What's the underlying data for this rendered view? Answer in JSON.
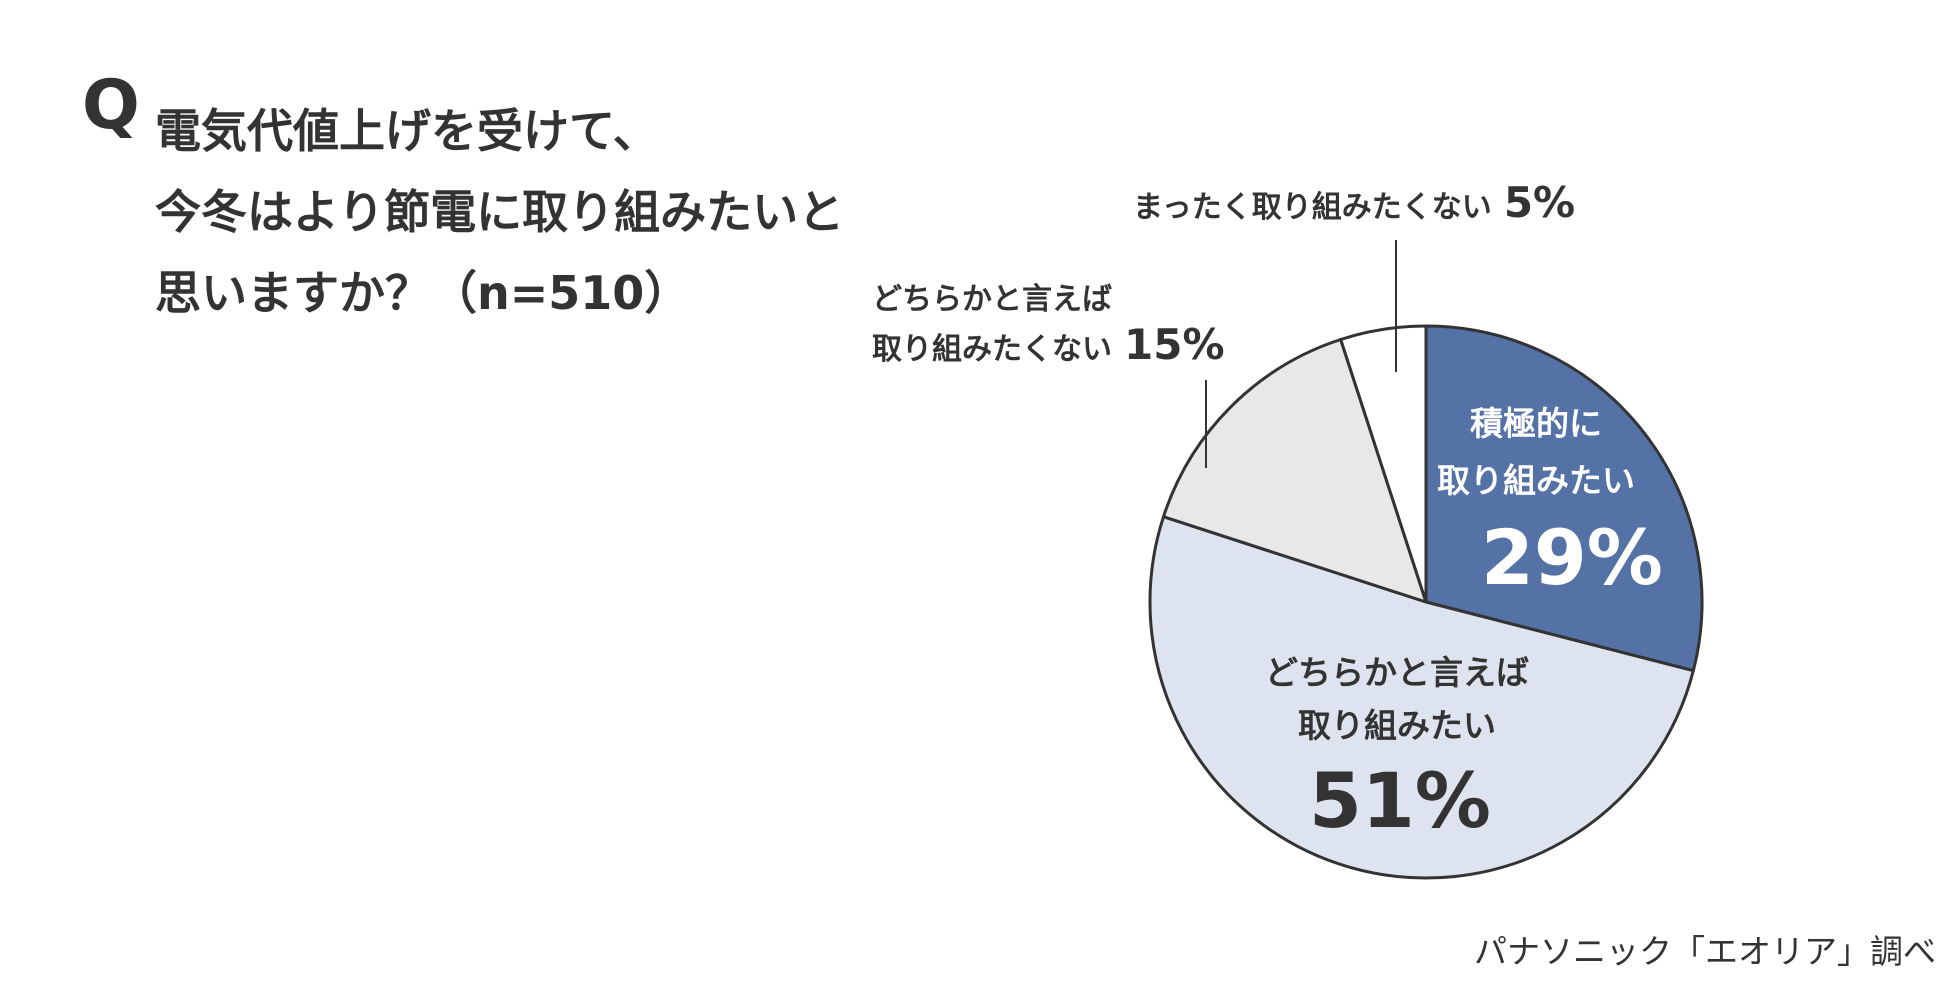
{
  "question": {
    "mark": "Q",
    "lines": [
      "電気代値上げを受けて、",
      "今冬はより節電に取り組みたいと",
      "思いますか？（n=510）"
    ]
  },
  "source": "パナソニック「エオリア」調べ",
  "chart_data": {
    "type": "pie",
    "title": "電気代値上げを受けて、今冬はより節電に取り組みたいと思いますか？（n=510）",
    "start_angle_deg": 0,
    "direction": "clockwise",
    "slices": [
      {
        "label_lines": [
          "積極的に",
          "取り組みたい"
        ],
        "value": 29,
        "value_label": "29%",
        "color": "#5472a6",
        "text_color": "#ffffff",
        "label_position": "inside"
      },
      {
        "label_lines": [
          "どちらかと言えば",
          "取り組みたい"
        ],
        "value": 51,
        "value_label": "51%",
        "color": "#dde3ef",
        "text_color": "#333333",
        "label_position": "inside"
      },
      {
        "label_lines": [
          "どちらかと言えば",
          "取り組みたくない"
        ],
        "value": 15,
        "value_label": "15%",
        "color": "#e8e8e8",
        "text_color": "#333333",
        "label_position": "outside-left"
      },
      {
        "label_lines": [
          "まったく取り組みたくない"
        ],
        "value": 5,
        "value_label": "5%",
        "color": "#ffffff",
        "text_color": "#333333",
        "label_position": "outside-top"
      }
    ],
    "border_color": "#333333"
  }
}
